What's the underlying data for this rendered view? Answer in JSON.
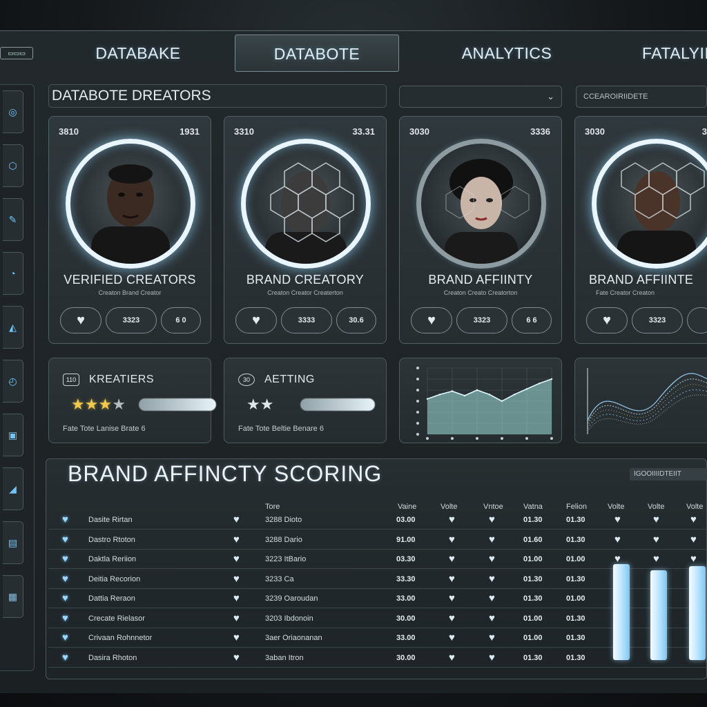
{
  "nav": {
    "badge": "▭▭▭",
    "tabs": [
      {
        "label": "DATABAKE"
      },
      {
        "label": "DATABOTE"
      },
      {
        "label": "ANALYTICS"
      },
      {
        "label": "FATALYII"
      }
    ]
  },
  "header": {
    "title": "DATABOTE DREATORS",
    "dropdown_1": "",
    "dropdown_2": "CCEAROIRIIDETE"
  },
  "cards": [
    {
      "stat_left": "3810",
      "stat_right": "1931",
      "name": "VERIFIED CREATORS",
      "sub": "Creaton Brand Creator",
      "pill_mid": "3323",
      "pill_end": "6 0"
    },
    {
      "stat_left": "3310",
      "stat_right": "33.31",
      "name": "BRAND CREATORY",
      "sub": "Creaton Creator Createrton",
      "pill_mid": "3333",
      "pill_end": "30.6"
    },
    {
      "stat_left": "3030",
      "stat_right": "3336",
      "name": "BRAND AFFIINTY",
      "sub": "Creaton Creato Creatorton",
      "pill_mid": "3323",
      "pill_end": "6 6"
    },
    {
      "stat_left": "3030",
      "stat_right": "3",
      "name": "BRAND AFFIINTE",
      "sub": "Fate Creator Creaton",
      "pill_mid": "3323",
      "pill_end": ""
    }
  ],
  "mid": {
    "creatiers": {
      "icon": "110",
      "title": "KREATIERS",
      "stars_on": 3,
      "stars_total": 5,
      "level": 0.7,
      "foot": "Fate Tote Lanise Brate 6"
    },
    "aetting": {
      "icon": "30",
      "title": "AETTING",
      "stars_on": 2,
      "stars_total": 5,
      "level": 0.45,
      "foot": "Fate Tote Beltie Benare 6"
    }
  },
  "chart_data": {
    "type": "area",
    "x": [
      0,
      1,
      2,
      3,
      4,
      5,
      6,
      7,
      8,
      9,
      10
    ],
    "values": [
      3.2,
      3.6,
      3.9,
      3.5,
      4.0,
      3.6,
      3.0,
      3.6,
      4.1,
      4.6,
      5.0
    ],
    "ylim": [
      0,
      6
    ],
    "title": "",
    "xlabel": "",
    "ylabel": ""
  },
  "table": {
    "title": "BRAND AFFINCTY SCORING",
    "tag": "IGOOIIIIDTEIIT",
    "headers": [
      "Tore",
      "Vaine",
      "Volte",
      "Vntoe",
      "Vatna",
      "Felion",
      "Volte",
      "Volte",
      "Volte"
    ],
    "rows": [
      {
        "name": "Dasite Rirtan",
        "code": "3288 Dioto",
        "v1": "03.00",
        "v2": "01.30",
        "v3": "01.30"
      },
      {
        "name": "Dastro Rtoton",
        "code": "3288 Dario",
        "v1": "91.00",
        "v2": "01.60",
        "v3": "01.30"
      },
      {
        "name": "Daktla Reriion",
        "code": "3223 ItBario",
        "v1": "03.30",
        "v2": "01.00",
        "v3": "01.00"
      },
      {
        "name": "Deitia Recorion",
        "code": "3233 Ca",
        "v1": "33.30",
        "v2": "01.30",
        "v3": "01.30"
      },
      {
        "name": "Dattia Reraon",
        "code": "3239 Oaroudan",
        "v1": "33.00",
        "v2": "01.30",
        "v3": "01.00"
      },
      {
        "name": "Crecate Rielasor",
        "code": "3203 Ibdonoin",
        "v1": "30.00",
        "v2": "01.00",
        "v3": "01.30"
      },
      {
        "name": "Crivaan Rohnnetor",
        "code": "3aer Oriaonanan",
        "v1": "33.00",
        "v2": "01.00",
        "v3": "01.30"
      },
      {
        "name": "Dasira Rhoton",
        "code": "3aban Itron",
        "v1": "30.00",
        "v2": "01.30",
        "v3": "01.30"
      }
    ],
    "bars": [
      0.94,
      0.88,
      0.92
    ]
  }
}
